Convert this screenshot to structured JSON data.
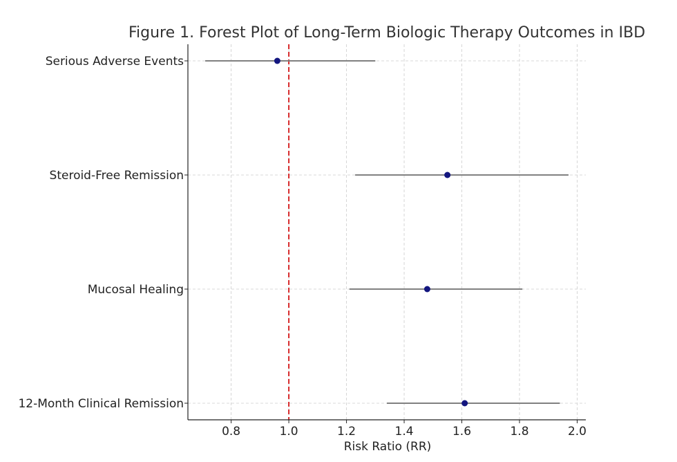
{
  "chart_data": {
    "type": "forest",
    "title": "Figure 1. Forest Plot of Long-Term Biologic Therapy Outcomes in IBD",
    "xlabel": "Risk Ratio (RR)",
    "ylabel": "",
    "xlim": [
      0.65,
      2.03
    ],
    "x_ticks": [
      "0.8",
      "1.0",
      "1.2",
      "1.4",
      "1.6",
      "1.8",
      "2.0"
    ],
    "reference_line": {
      "x": 1.0,
      "color": "#d62728",
      "style": "dashed"
    },
    "grid": true,
    "outcomes": [
      {
        "label": "Serious Adverse Events",
        "rr": 0.96,
        "ci_low": 0.71,
        "ci_high": 1.3
      },
      {
        "label": "Steroid-Free Remission",
        "rr": 1.55,
        "ci_low": 1.23,
        "ci_high": 1.97
      },
      {
        "label": "Mucosal Healing",
        "rr": 1.48,
        "ci_low": 1.21,
        "ci_high": 1.81
      },
      {
        "label": "12-Month Clinical Remission",
        "rr": 1.61,
        "ci_low": 1.34,
        "ci_high": 1.94
      }
    ],
    "colors": {
      "point": "#13167f",
      "ci_line": "#808080",
      "reference": "#d62728",
      "grid": "#cccccc",
      "axis": "#222222"
    }
  }
}
